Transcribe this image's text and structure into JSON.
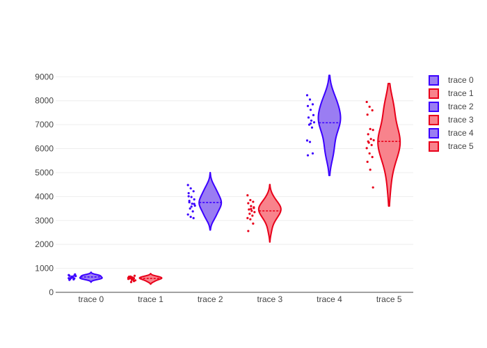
{
  "chart_data": {
    "type": "violin",
    "title": "",
    "xlabel": "",
    "ylabel": "",
    "ylim": [
      0,
      9300
    ],
    "yticks": [
      0,
      1000,
      2000,
      3000,
      4000,
      5000,
      6000,
      7000,
      8000,
      9000
    ],
    "yticklabels": [
      "0",
      "1000",
      "2000",
      "3000",
      "4000",
      "5000",
      "6000",
      "7000",
      "8000",
      "9000"
    ],
    "categories": [
      "trace 0",
      "trace 1",
      "trace 2",
      "trace 3",
      "trace 4",
      "trace 5"
    ],
    "grid": true,
    "legend_position": "top-right",
    "colors": {
      "blue_line": "#3b00ff",
      "blue_fill": "#9a7df2",
      "red_line": "#e8001a",
      "red_fill": "#f8838c"
    },
    "series": [
      {
        "name": "trace 0",
        "color_key": "blue",
        "median": 640,
        "min": 420,
        "max": 840,
        "points": [
          590,
          610,
          700,
          520,
          660,
          750,
          560,
          630,
          680,
          600,
          540,
          720,
          650,
          580,
          690,
          620,
          710,
          570
        ]
      },
      {
        "name": "trace 1",
        "color_key": "red",
        "median": 580,
        "min": 340,
        "max": 780,
        "points": [
          560,
          640,
          470,
          600,
          520,
          690,
          580,
          620,
          500,
          660,
          540,
          610,
          430,
          590,
          650,
          570
        ]
      },
      {
        "name": "trace 2",
        "color_key": "blue",
        "median": 3750,
        "min": 2600,
        "max": 5000,
        "points": [
          4480,
          4340,
          4220,
          4140,
          3980,
          3880,
          3760,
          3700,
          3620,
          3500,
          3380,
          3250,
          3150,
          3100,
          4010,
          3580,
          3690,
          3820
        ]
      },
      {
        "name": "trace 3",
        "color_key": "red",
        "median": 3400,
        "min": 2100,
        "max": 4500,
        "points": [
          4050,
          3850,
          3780,
          3720,
          3600,
          3520,
          3460,
          3400,
          3350,
          3280,
          3200,
          3100,
          3050,
          2870,
          2560,
          3480,
          3550
        ]
      },
      {
        "name": "trace 4",
        "color_key": "blue",
        "median": 7080,
        "min": 4880,
        "max": 9060,
        "points": [
          8230,
          8050,
          7850,
          7780,
          7620,
          7400,
          7300,
          7170,
          7100,
          7000,
          6880,
          6340,
          6280,
          5800,
          5720,
          7050
        ]
      },
      {
        "name": "trace 5",
        "color_key": "red",
        "median": 6300,
        "min": 3600,
        "max": 8720,
        "points": [
          7950,
          7750,
          7600,
          7420,
          6820,
          6780,
          6600,
          6400,
          6350,
          6250,
          6150,
          6020,
          5800,
          5650,
          5450,
          5120,
          4380,
          6300
        ]
      }
    ]
  }
}
